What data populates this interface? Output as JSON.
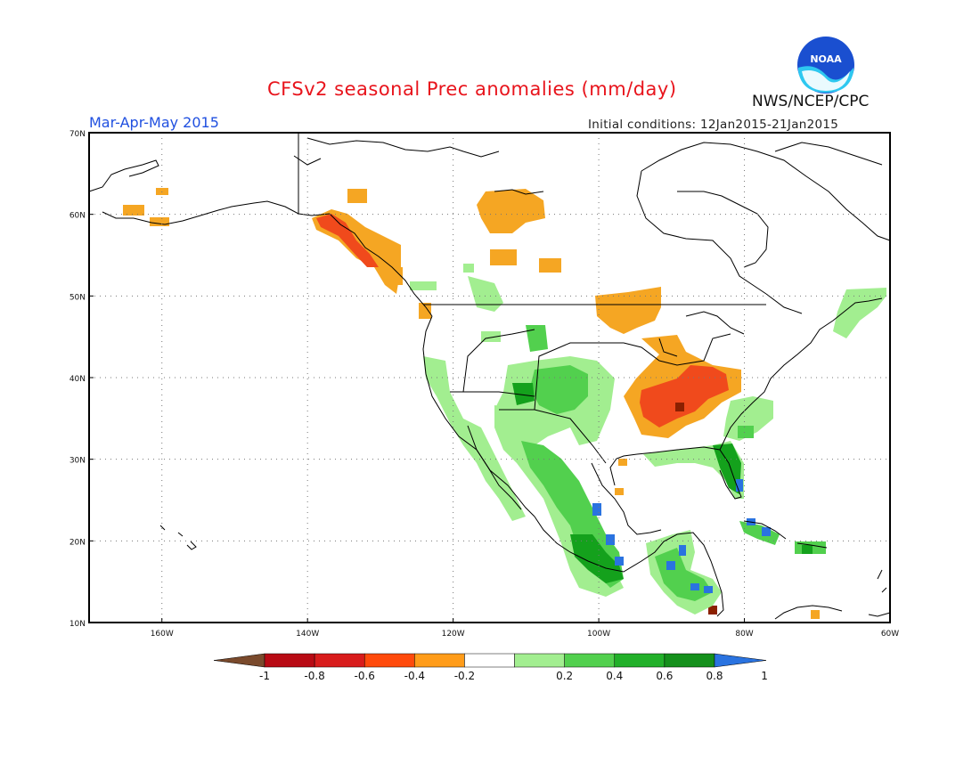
{
  "header": {
    "title": "CFSv2 seasonal Prec anomalies (mm/day)",
    "period": "Mar-Apr-May 2015",
    "initial_conditions": "Initial conditions: 12Jan2015-21Jan2015",
    "org": "NWS/NCEP/CPC",
    "logo_text": "NOAA"
  },
  "map": {
    "lat_labels": [
      "70N",
      "60N",
      "50N",
      "40N",
      "30N",
      "20N",
      "10N"
    ],
    "lon_labels": [
      "160W",
      "140W",
      "120W",
      "100W",
      "80W",
      "60W"
    ],
    "colors": {
      "dry_strong": "#8b2000",
      "dry_mid": "#f04a1c",
      "dry_light": "#f5a623",
      "wet_light": "#a2ee90",
      "wet_mid": "#52d04e",
      "wet_strong": "#14a11c",
      "wet_extreme": "#2a73e0",
      "coast": "#000000"
    }
  },
  "colorbar": {
    "labels": [
      "-1",
      "-0.8",
      "-0.6",
      "-0.4",
      "-0.2",
      "0.2",
      "0.4",
      "0.6",
      "0.8",
      "1"
    ],
    "colors": [
      "#7a4a2c",
      "#b80a14",
      "#d81c1c",
      "#ff4a0c",
      "#ff9c1a",
      "#ffffff",
      "#a2ee90",
      "#52d04e",
      "#22b02a",
      "#15901c",
      "#2a73e0"
    ]
  }
}
